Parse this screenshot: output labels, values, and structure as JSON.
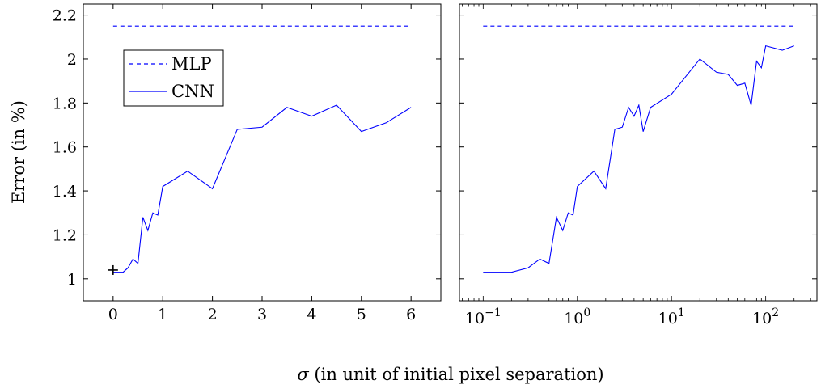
{
  "chart_data": [
    {
      "type": "line",
      "panel": "left",
      "ylabel": "Error (in %)",
      "xlim": [
        -0.6,
        6.6
      ],
      "ylim": [
        0.9,
        2.25
      ],
      "x_ticks": [
        0,
        1,
        2,
        3,
        4,
        5,
        6
      ],
      "x_tick_labels": [
        "0",
        "1",
        "2",
        "3",
        "4",
        "5",
        "6"
      ],
      "y_ticks": [
        1,
        1.2,
        1.4,
        1.6,
        1.8,
        2,
        2.2
      ],
      "y_tick_labels": [
        "1",
        "1.2",
        "1.4",
        "1.6",
        "1.8",
        "2",
        "2.2"
      ],
      "grid": false,
      "legend": {
        "placement": "top-left",
        "entries": [
          "MLP",
          "CNN"
        ]
      },
      "series": [
        {
          "name": "MLP",
          "style": "dashed",
          "color": "#0000ff",
          "x": [
            0,
            6
          ],
          "y": [
            2.15,
            2.15
          ]
        },
        {
          "name": "CNN",
          "style": "solid",
          "color": "#0000ff",
          "x": [
            0,
            0.1,
            0.2,
            0.3,
            0.4,
            0.5,
            0.6,
            0.7,
            0.8,
            0.9,
            1,
            1.5,
            2,
            2.5,
            3,
            3.5,
            4,
            4.5,
            5,
            5.5,
            6
          ],
          "y": [
            1.03,
            1.03,
            1.03,
            1.05,
            1.09,
            1.07,
            1.28,
            1.22,
            1.3,
            1.29,
            1.42,
            1.49,
            1.41,
            1.68,
            1.69,
            1.78,
            1.74,
            1.79,
            1.67,
            1.71,
            1.78
          ]
        }
      ],
      "markers": [
        {
          "symbol": "+",
          "color": "#000000",
          "x": 0,
          "y": 1.04
        }
      ]
    },
    {
      "type": "line",
      "panel": "right",
      "x_scale": "log",
      "xlim": [
        0.056,
        350
      ],
      "ylim": [
        0.9,
        2.25
      ],
      "x_ticks": [
        0.1,
        1,
        10,
        100
      ],
      "x_tick_labels": [
        {
          "base": "10",
          "exp": "−1"
        },
        {
          "base": "10",
          "exp": "0"
        },
        {
          "base": "10",
          "exp": "1"
        },
        {
          "base": "10",
          "exp": "2"
        }
      ],
      "y_ticks": [
        1,
        1.2,
        1.4,
        1.6,
        1.8,
        2,
        2.2
      ],
      "grid": false,
      "series": [
        {
          "name": "MLP",
          "style": "dashed",
          "color": "#0000ff",
          "x": [
            0.1,
            200
          ],
          "y": [
            2.15,
            2.15
          ]
        },
        {
          "name": "CNN",
          "style": "solid",
          "color": "#0000ff",
          "x": [
            0.1,
            0.2,
            0.3,
            0.4,
            0.5,
            0.6,
            0.7,
            0.8,
            0.9,
            1,
            1.5,
            2,
            2.5,
            3,
            3.5,
            4,
            4.5,
            5,
            6,
            10,
            20,
            30,
            40,
            50,
            60,
            70,
            80,
            90,
            100,
            150,
            200
          ],
          "y": [
            1.03,
            1.03,
            1.05,
            1.09,
            1.07,
            1.28,
            1.22,
            1.3,
            1.29,
            1.42,
            1.49,
            1.41,
            1.68,
            1.69,
            1.78,
            1.74,
            1.79,
            1.67,
            1.78,
            1.84,
            2.0,
            1.94,
            1.93,
            1.88,
            1.89,
            1.79,
            1.99,
            1.96,
            2.06,
            2.04,
            2.06
          ]
        }
      ]
    }
  ],
  "xlabel": {
    "symbol": "σ",
    "text": " (in unit of initial pixel separation)"
  }
}
